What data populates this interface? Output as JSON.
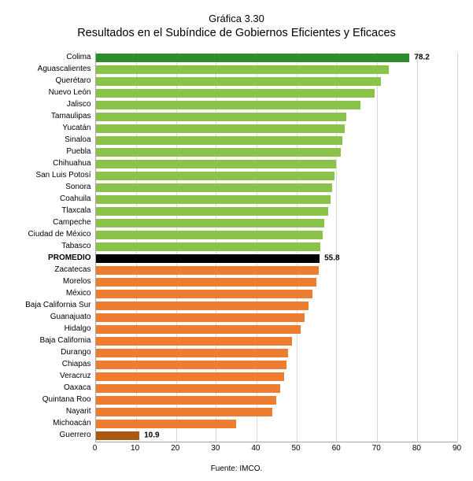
{
  "title": {
    "line1": "Gráfica 3.30",
    "line2": "Resultados en el Subíndice de Gobiernos Eficientes y Eficaces",
    "line1_fontsize": 13,
    "line2_fontsize": 14.5,
    "color": "#000000"
  },
  "chart": {
    "type": "bar",
    "orientation": "horizontal",
    "background_color": "#ffffff",
    "grid_color": "#d9d9d9",
    "axis_color": "#a6a6a6",
    "xlim": [
      0,
      90
    ],
    "xtick_step": 10,
    "xticks": [
      0,
      10,
      20,
      30,
      40,
      50,
      60,
      70,
      80,
      90
    ],
    "label_fontsize": 10,
    "value_fontsize": 10,
    "bar_gap_ratio": 0.28,
    "colors": {
      "above_dark": "#2e8b2e",
      "above": "#8bc34a",
      "average": "#000000",
      "below": "#ed7d31",
      "below_dark": "#a65a12"
    },
    "bars": [
      {
        "label": "Colima",
        "value": 78.2,
        "color": "#2e8b2e",
        "show_value": true,
        "bold_label": false
      },
      {
        "label": "Aguascalientes",
        "value": 73.0,
        "color": "#8bc34a",
        "show_value": false,
        "bold_label": false
      },
      {
        "label": "Querétaro",
        "value": 71.0,
        "color": "#8bc34a",
        "show_value": false,
        "bold_label": false
      },
      {
        "label": "Nuevo León",
        "value": 69.5,
        "color": "#8bc34a",
        "show_value": false,
        "bold_label": false
      },
      {
        "label": "Jalisco",
        "value": 66.0,
        "color": "#8bc34a",
        "show_value": false,
        "bold_label": false
      },
      {
        "label": "Tamaulipas",
        "value": 62.5,
        "color": "#8bc34a",
        "show_value": false,
        "bold_label": false
      },
      {
        "label": "Yucatán",
        "value": 62.0,
        "color": "#8bc34a",
        "show_value": false,
        "bold_label": false
      },
      {
        "label": "Sinaloa",
        "value": 61.5,
        "color": "#8bc34a",
        "show_value": false,
        "bold_label": false
      },
      {
        "label": "Puebla",
        "value": 61.0,
        "color": "#8bc34a",
        "show_value": false,
        "bold_label": false
      },
      {
        "label": "Chihuahua",
        "value": 60.0,
        "color": "#8bc34a",
        "show_value": false,
        "bold_label": false
      },
      {
        "label": "San Luis Potosí",
        "value": 59.5,
        "color": "#8bc34a",
        "show_value": false,
        "bold_label": false
      },
      {
        "label": "Sonora",
        "value": 59.0,
        "color": "#8bc34a",
        "show_value": false,
        "bold_label": false
      },
      {
        "label": "Coahuila",
        "value": 58.5,
        "color": "#8bc34a",
        "show_value": false,
        "bold_label": false
      },
      {
        "label": "Tlaxcala",
        "value": 58.0,
        "color": "#8bc34a",
        "show_value": false,
        "bold_label": false
      },
      {
        "label": "Campeche",
        "value": 57.0,
        "color": "#8bc34a",
        "show_value": false,
        "bold_label": false
      },
      {
        "label": "Ciudad de México",
        "value": 56.5,
        "color": "#8bc34a",
        "show_value": false,
        "bold_label": false
      },
      {
        "label": "Tabasco",
        "value": 56.0,
        "color": "#8bc34a",
        "show_value": false,
        "bold_label": false
      },
      {
        "label": "PROMEDIO",
        "value": 55.8,
        "color": "#000000",
        "show_value": true,
        "bold_label": true
      },
      {
        "label": "Zacatecas",
        "value": 55.5,
        "color": "#ed7d31",
        "show_value": false,
        "bold_label": false
      },
      {
        "label": "Morelos",
        "value": 55.0,
        "color": "#ed7d31",
        "show_value": false,
        "bold_label": false
      },
      {
        "label": "México",
        "value": 54.0,
        "color": "#ed7d31",
        "show_value": false,
        "bold_label": false
      },
      {
        "label": "Baja California Sur",
        "value": 53.0,
        "color": "#ed7d31",
        "show_value": false,
        "bold_label": false
      },
      {
        "label": "Guanajuato",
        "value": 52.0,
        "color": "#ed7d31",
        "show_value": false,
        "bold_label": false
      },
      {
        "label": "Hidalgo",
        "value": 51.0,
        "color": "#ed7d31",
        "show_value": false,
        "bold_label": false
      },
      {
        "label": "Baja California",
        "value": 49.0,
        "color": "#ed7d31",
        "show_value": false,
        "bold_label": false
      },
      {
        "label": "Durango",
        "value": 48.0,
        "color": "#ed7d31",
        "show_value": false,
        "bold_label": false
      },
      {
        "label": "Chiapas",
        "value": 47.5,
        "color": "#ed7d31",
        "show_value": false,
        "bold_label": false
      },
      {
        "label": "Veracruz",
        "value": 47.0,
        "color": "#ed7d31",
        "show_value": false,
        "bold_label": false
      },
      {
        "label": "Oaxaca",
        "value": 46.0,
        "color": "#ed7d31",
        "show_value": false,
        "bold_label": false
      },
      {
        "label": "Quintana Roo",
        "value": 45.0,
        "color": "#ed7d31",
        "show_value": false,
        "bold_label": false
      },
      {
        "label": "Nayarit",
        "value": 44.0,
        "color": "#ed7d31",
        "show_value": false,
        "bold_label": false
      },
      {
        "label": "Michoacán",
        "value": 35.0,
        "color": "#ed7d31",
        "show_value": false,
        "bold_label": false
      },
      {
        "label": "Guerrero",
        "value": 10.9,
        "color": "#a65a12",
        "show_value": true,
        "bold_label": false
      }
    ]
  },
  "source": "Fuente: IMCO."
}
